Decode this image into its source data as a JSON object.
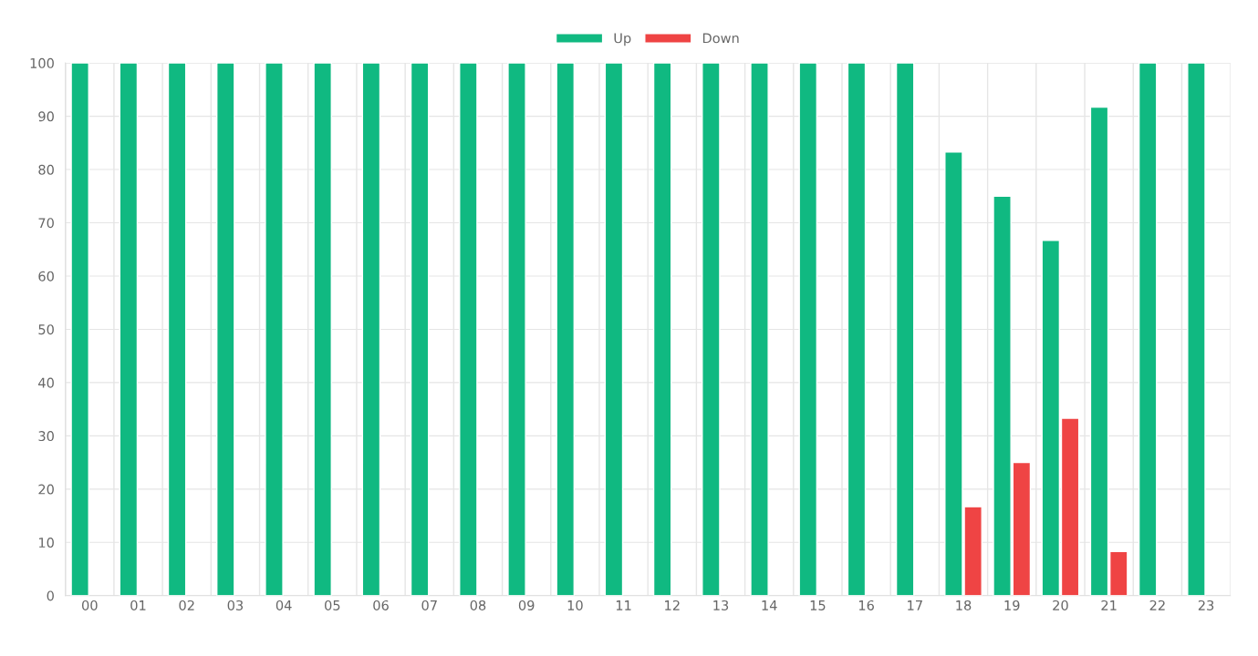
{
  "chart_data": {
    "type": "bar",
    "categories": [
      "00",
      "01",
      "02",
      "03",
      "04",
      "05",
      "06",
      "07",
      "08",
      "09",
      "10",
      "11",
      "12",
      "13",
      "14",
      "15",
      "16",
      "17",
      "18",
      "19",
      "20",
      "21",
      "22",
      "23"
    ],
    "series": [
      {
        "name": "Up",
        "color": "#10b981",
        "values": [
          100,
          100,
          100,
          100,
          100,
          100,
          100,
          100,
          100,
          100,
          100,
          100,
          100,
          100,
          100,
          100,
          100,
          100,
          83.3,
          75,
          66.7,
          91.7,
          100,
          100
        ]
      },
      {
        "name": "Down",
        "color": "#ef4444",
        "values": [
          null,
          null,
          null,
          null,
          null,
          null,
          null,
          null,
          null,
          null,
          null,
          null,
          null,
          null,
          null,
          null,
          null,
          null,
          16.7,
          25,
          33.3,
          8.3,
          null,
          null
        ]
      }
    ],
    "ylim": [
      0,
      100
    ],
    "yticks": [
      0,
      10,
      20,
      30,
      40,
      50,
      60,
      70,
      80,
      90,
      100
    ],
    "grid": true,
    "legend": "top"
  }
}
